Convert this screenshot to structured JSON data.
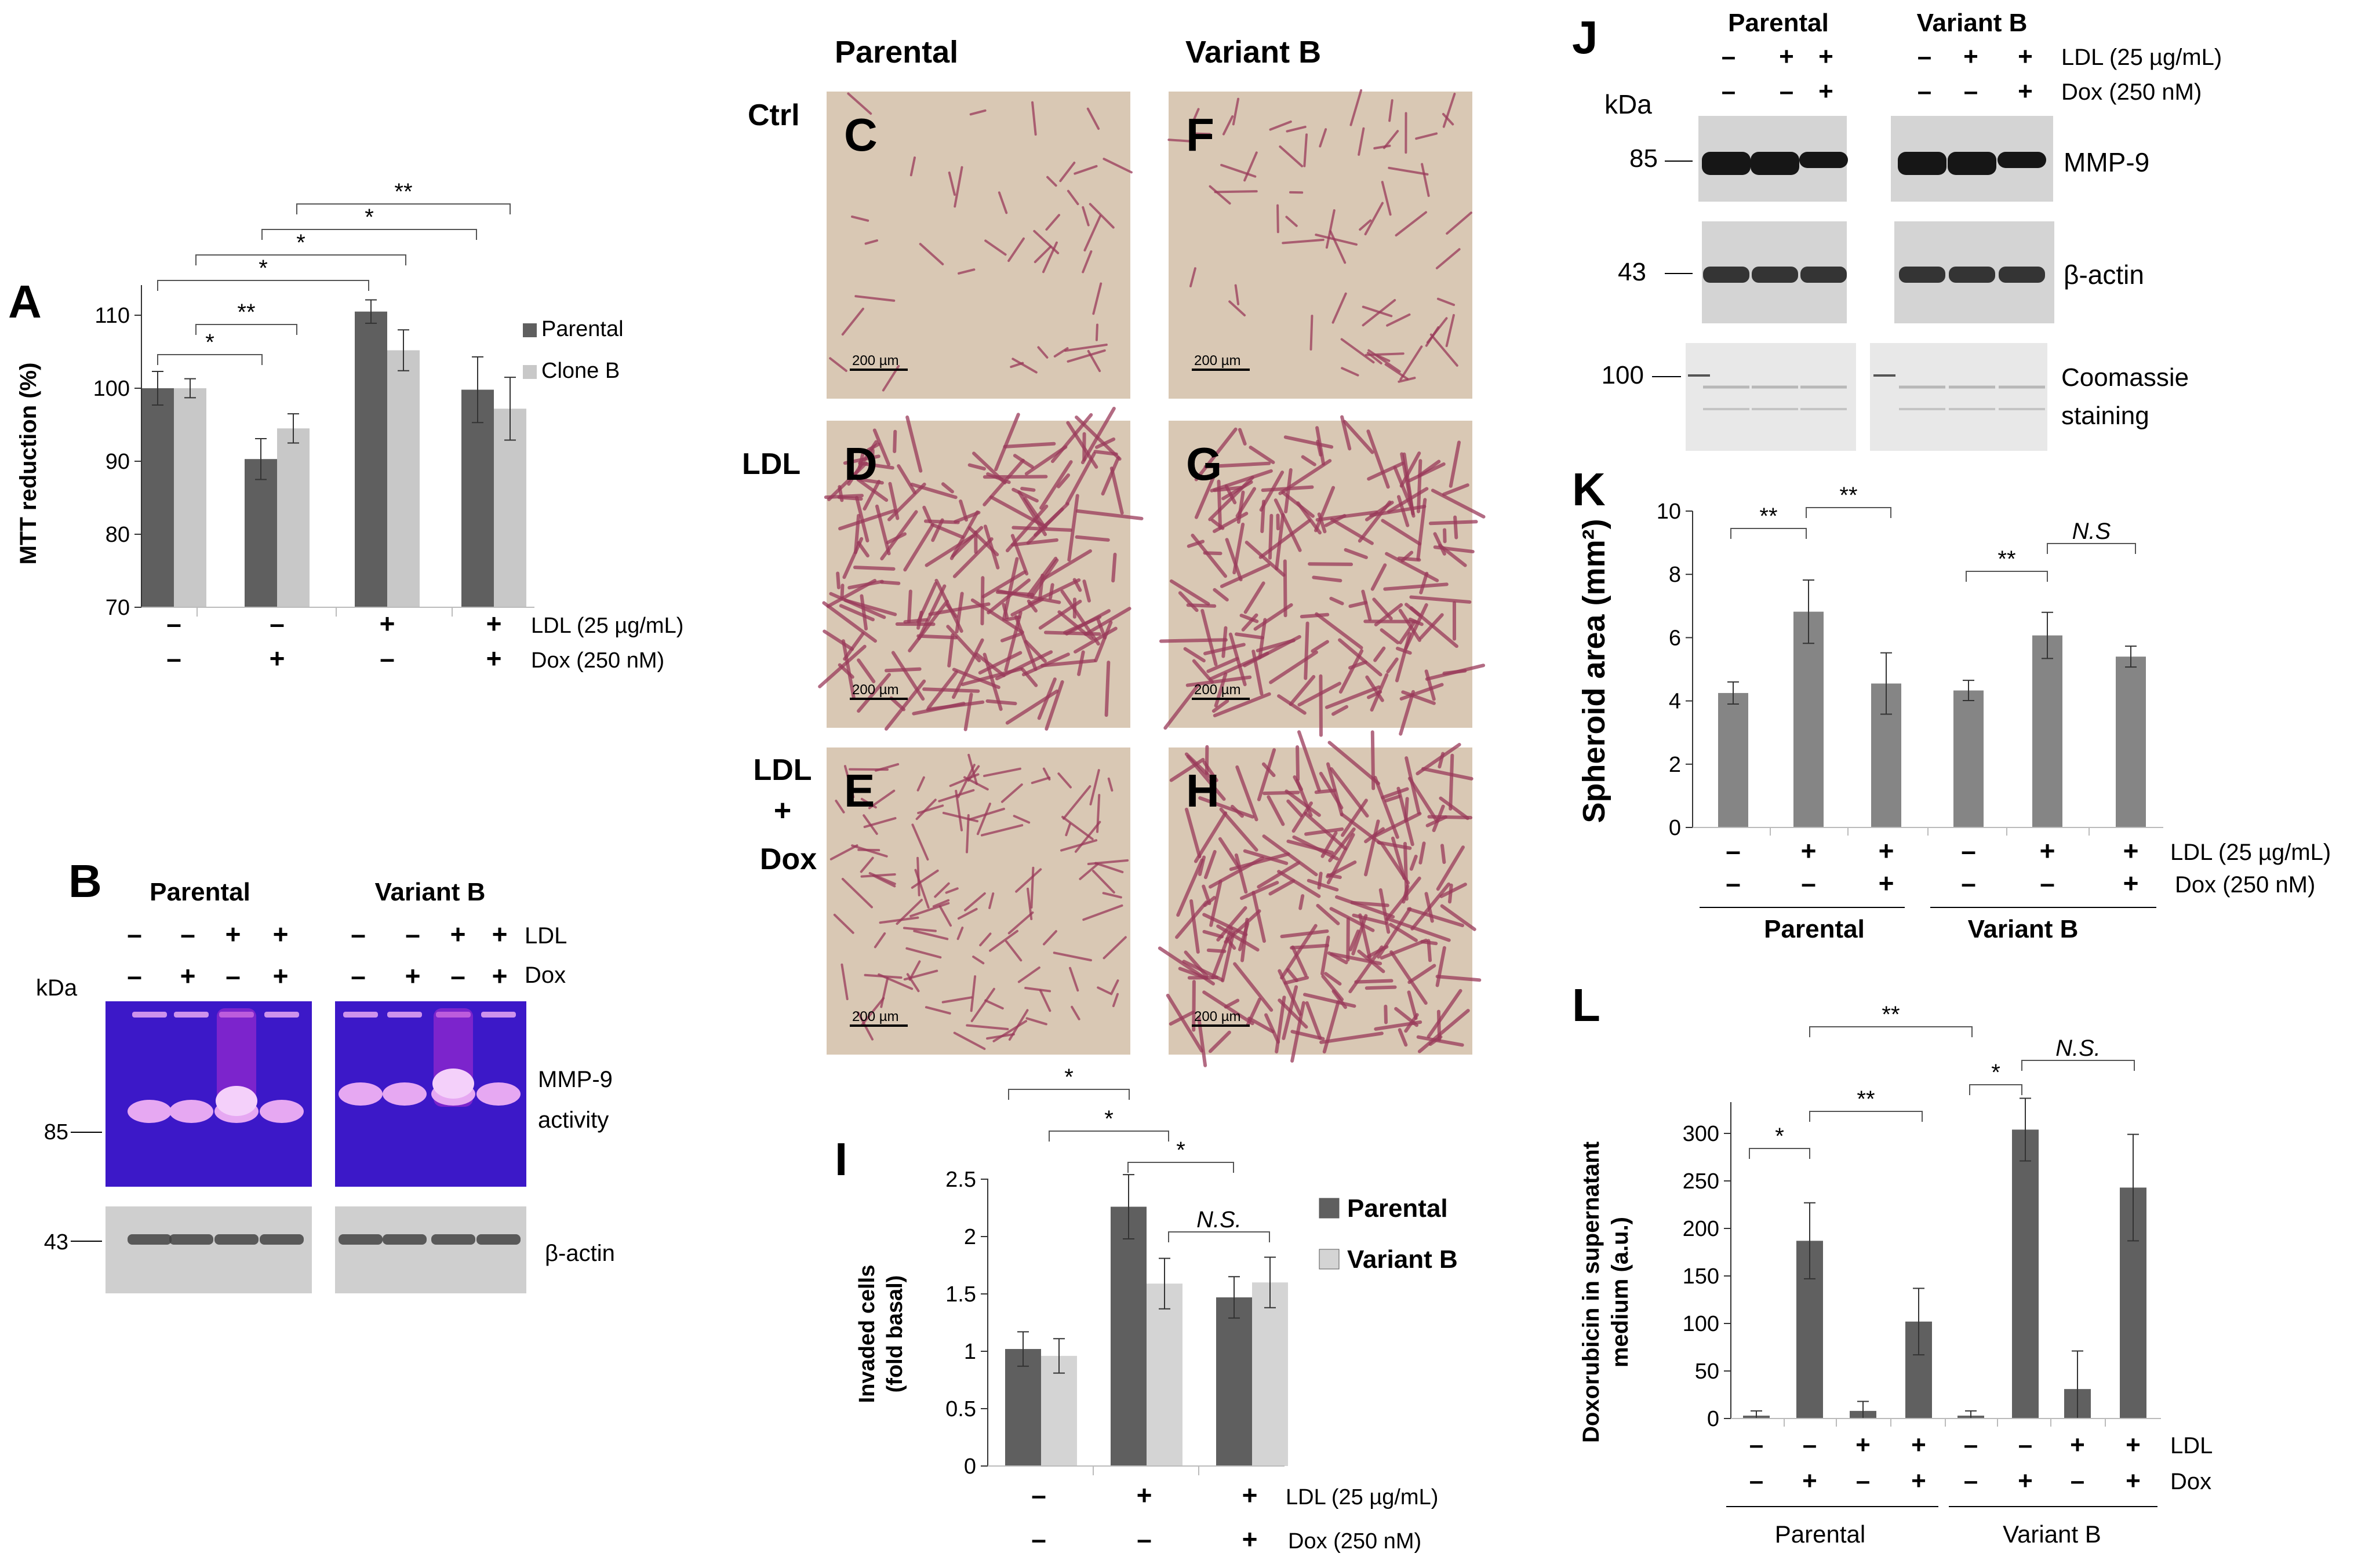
{
  "chart_data": [
    {
      "panel": "A",
      "type": "bar",
      "ylabel": "MTT reduction (%)",
      "ylim": [
        70,
        115
      ],
      "yticks": [
        70,
        80,
        90,
        100,
        110
      ],
      "conditions": [
        [
          "–",
          "–"
        ],
        [
          "–",
          "+"
        ],
        [
          "+",
          "–"
        ],
        [
          "+",
          "+"
        ]
      ],
      "condition_labels": [
        "LDL  (25 µg/mL)",
        "Dox  (250 nM)"
      ],
      "series": [
        {
          "name": "Parental",
          "values": [
            100,
            90.3,
            110.5,
            99.8
          ],
          "errors": [
            2.3,
            2.8,
            1.6,
            4.5
          ]
        },
        {
          "name": "Clone B",
          "values": [
            100,
            94.5,
            105.2,
            97.2
          ],
          "errors": [
            1.3,
            2.0,
            2.8,
            4.3
          ]
        }
      ],
      "significance": [
        "*",
        "**",
        "*",
        "*",
        "*",
        "**"
      ],
      "legend": "right"
    },
    {
      "panel": "I",
      "type": "bar",
      "ylabel": "Invaded cells (fold basal)",
      "ylabel_lines": [
        "Invaded cells",
        "(fold basal)"
      ],
      "ylim": [
        0,
        2.5
      ],
      "yticks": [
        "0",
        "0.5",
        "1",
        "1.5",
        "2",
        "2.5"
      ],
      "conditions": [
        [
          "–",
          "–"
        ],
        [
          "+",
          "–"
        ],
        [
          "+",
          "+"
        ]
      ],
      "condition_labels": [
        "LDL  (25 µg/mL)",
        "Dox  (250 nM)"
      ],
      "series": [
        {
          "name": "Parental",
          "values": [
            1.02,
            2.26,
            1.47
          ],
          "errors": [
            0.15,
            0.28,
            0.18
          ]
        },
        {
          "name": "Variant B",
          "values": [
            0.96,
            1.59,
            1.6
          ],
          "errors": [
            0.15,
            0.22,
            0.22
          ]
        }
      ],
      "significance": [
        "*",
        "*",
        "*",
        "N.S."
      ],
      "legend": "right"
    },
    {
      "panel": "K",
      "type": "bar",
      "ylabel": "Spheroid area (mm²)",
      "ylim": [
        0,
        10
      ],
      "yticks": [
        0,
        2,
        4,
        6,
        8,
        10
      ],
      "conditions": [
        [
          "–",
          "–"
        ],
        [
          "+",
          "–"
        ],
        [
          "+",
          "+"
        ],
        [
          "–",
          "–"
        ],
        [
          "+",
          "–"
        ],
        [
          "+",
          "+"
        ]
      ],
      "condition_labels": [
        "LDL (25 µg/mL)",
        "Dox (250 nM)"
      ],
      "groups": [
        "Parental",
        "Variant B"
      ],
      "values": [
        4.25,
        6.82,
        4.55,
        4.33,
        6.07,
        5.4
      ],
      "errors": [
        0.35,
        1.0,
        0.97,
        0.32,
        0.73,
        0.33
      ],
      "significance": [
        "**",
        "**",
        "**",
        "N.S"
      ]
    },
    {
      "panel": "L",
      "type": "bar",
      "ylabel": "Doxorubicin in supernatant medium (a.u.)",
      "ylabel_lines": [
        "Doxorubicin in supernatant",
        "medium (a.u.)"
      ],
      "ylim": [
        0,
        340
      ],
      "yticks": [
        0,
        50,
        100,
        150,
        200,
        250,
        300
      ],
      "conditions": [
        [
          "–",
          "–"
        ],
        [
          "–",
          "+"
        ],
        [
          "+",
          "–"
        ],
        [
          "+",
          "+"
        ],
        [
          "–",
          "–"
        ],
        [
          "–",
          "+"
        ],
        [
          "+",
          "–"
        ],
        [
          "+",
          "+"
        ]
      ],
      "condition_labels": [
        "LDL",
        "Dox"
      ],
      "groups": [
        "Parental",
        "Variant B"
      ],
      "values": [
        3,
        187,
        8,
        102,
        3,
        304,
        31,
        243
      ],
      "errors": [
        5,
        40,
        10,
        35,
        5,
        33,
        40,
        56
      ],
      "significance": [
        "*",
        "**",
        "**",
        "*",
        "N.S."
      ]
    }
  ],
  "panel_letters": {
    "A": "A",
    "B": "B",
    "C": "C",
    "D": "D",
    "E": "E",
    "F": "F",
    "G": "G",
    "H": "H",
    "I": "I",
    "J": "J",
    "K": "K",
    "L": "L"
  },
  "panel_b": {
    "parental": "Parental",
    "variant": "Variant B",
    "row_ldl": "LDL",
    "row_dox": "Dox",
    "kda": "kDa",
    "ldl_signs": [
      "–",
      "–",
      "+",
      "+"
    ],
    "dox_signs": [
      "–",
      "+",
      "–",
      "+"
    ],
    "mw_85": "85",
    "mw_43": "43",
    "band1": "MMP-9",
    "band1b": "activity",
    "band2": "β-actin",
    "gel_color": "#3c18c8",
    "band_color": "#e6a8f2"
  },
  "micrographs": {
    "col1": "Parental",
    "col2": "Variant B",
    "row_ctrl": "Ctrl",
    "row_ldl": "LDL",
    "row_combo1": "LDL",
    "row_combo2": "+",
    "row_combo3": "Dox",
    "scale_bar": "200 µm",
    "bg_color": "#d9c8b4",
    "cell_color": "#9a3a5a"
  },
  "panel_j": {
    "parental": "Parental",
    "variant": "Variant B",
    "row_ldl": "LDL (25 µg/mL)",
    "row_dox": "Dox (250 nM)",
    "kda": "kDa",
    "ldl_signs": [
      "–",
      "+",
      "+"
    ],
    "dox_signs": [
      "–",
      "–",
      "+"
    ],
    "mw_85": "85",
    "mw_43": "43",
    "mw_100": "100",
    "band1": "MMP-9",
    "band2": "β-actin",
    "band3a": "Coomassie",
    "band3b": "staining"
  },
  "colors": {
    "dark": "#5f5f5f",
    "light": "#c8c8c8",
    "k_bar": "#858585",
    "l_bar": "#606060"
  }
}
